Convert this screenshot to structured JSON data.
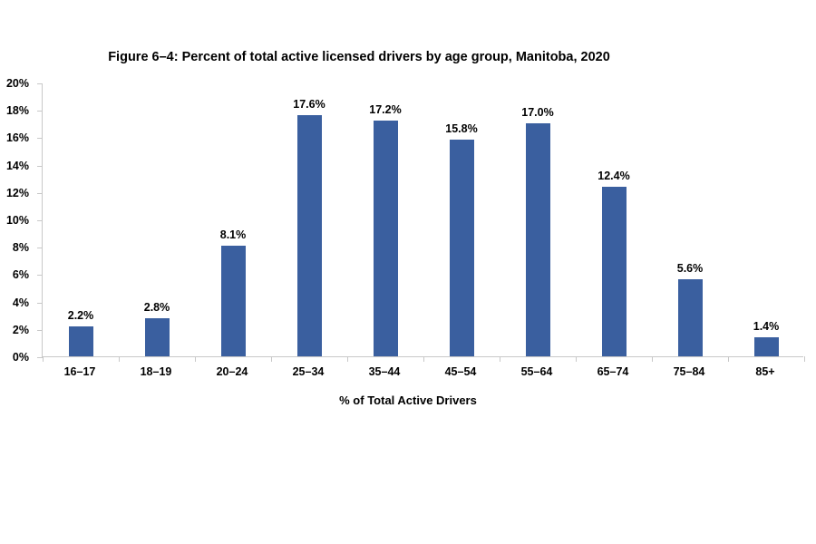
{
  "page": {
    "background": "#ffffff"
  },
  "chart_data": {
    "type": "bar",
    "title": "Figure 6–4: Percent of total active licensed drivers by age group, Manitoba, 2020",
    "categories": [
      "16–17",
      "18–19",
      "20–24",
      "25–34",
      "35–44",
      "45–54",
      "55–64",
      "65–74",
      "75–84",
      "85+"
    ],
    "values": [
      2.2,
      2.8,
      8.1,
      17.6,
      17.2,
      15.8,
      17.0,
      12.4,
      5.6,
      1.4
    ],
    "data_labels": [
      "2.2%",
      "2.8%",
      "8.1%",
      "17.6%",
      "17.2%",
      "15.8%",
      "17.0%",
      "12.4%",
      "5.6%",
      "1.4%"
    ],
    "xlabel": "% of Total Active Drivers",
    "ylabel": "",
    "ylim": [
      0,
      20
    ],
    "ytick_step": 2,
    "ytick_labels": [
      "0%",
      "2%",
      "4%",
      "6%",
      "8%",
      "10%",
      "12%",
      "14%",
      "16%",
      "18%",
      "20%"
    ],
    "grid": false,
    "legend_position": "none",
    "bar_color": "#3a5f9f",
    "axis_color": "#c8c8c8",
    "text_color": "#000000"
  }
}
